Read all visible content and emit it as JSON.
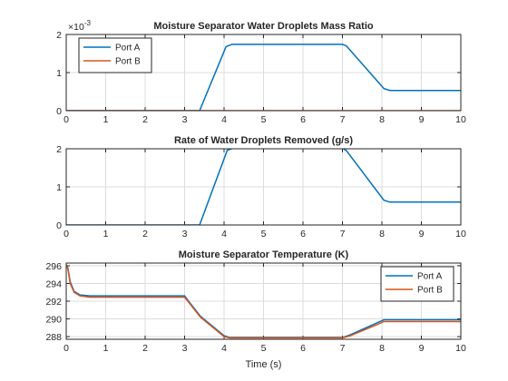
{
  "colors": {
    "series_a": "#0072BD",
    "series_b": "#D95319",
    "axis": "#262626",
    "grid": "#dcdcdc"
  },
  "chart_data": [
    {
      "type": "line",
      "title": "Moisture Separator Water Droplets Mass Ratio",
      "xlabel": "",
      "ylabel": "",
      "exponent_label": "×10",
      "exponent_power": "-3",
      "xlim": [
        0,
        10
      ],
      "ylim": [
        0,
        2
      ],
      "xticks": [
        0,
        1,
        2,
        3,
        4,
        5,
        6,
        7,
        8,
        9,
        10
      ],
      "yticks": [
        0,
        1,
        2
      ],
      "grid": true,
      "legend": "top-left",
      "series": [
        {
          "name": "Port A",
          "color": "#0072BD",
          "x": [
            0,
            3.38,
            4.05,
            4.2,
            7.0,
            7.1,
            8.05,
            8.2,
            10
          ],
          "y": [
            0,
            0,
            1.68,
            1.74,
            1.74,
            1.7,
            0.58,
            0.53,
            0.53
          ]
        },
        {
          "name": "Port B",
          "color": "#D95319",
          "x": [
            0,
            10
          ],
          "y": [
            0,
            0
          ]
        }
      ]
    },
    {
      "type": "line",
      "title": "Rate of Water Droplets Removed (g/s)",
      "xlabel": "",
      "ylabel": "",
      "xlim": [
        0,
        10
      ],
      "ylim": [
        0,
        2
      ],
      "xticks": [
        0,
        1,
        2,
        3,
        4,
        5,
        6,
        7,
        8,
        9,
        10
      ],
      "yticks": [
        0,
        1,
        2
      ],
      "grid": true,
      "series": [
        {
          "name": "",
          "color": "#0072BD",
          "x": [
            0,
            3.38,
            4.08,
            4.25,
            7.0,
            7.1,
            8.05,
            8.2,
            10
          ],
          "y": [
            0,
            0,
            1.96,
            2.02,
            2.02,
            1.95,
            0.65,
            0.6,
            0.6
          ]
        }
      ]
    },
    {
      "type": "line",
      "title": "Moisture Separator Temperature (K)",
      "xlabel": "Time (s)",
      "ylabel": "",
      "xlim": [
        0,
        10
      ],
      "ylim": [
        287.7,
        296.3
      ],
      "xticks": [
        0,
        1,
        2,
        3,
        4,
        5,
        6,
        7,
        8,
        9,
        10
      ],
      "yticks": [
        288,
        290,
        292,
        294,
        296
      ],
      "grid": true,
      "legend": "top-right",
      "series": [
        {
          "name": "Port A",
          "color": "#0072BD",
          "x": [
            0,
            0.04,
            0.1,
            0.2,
            0.35,
            0.6,
            3.0,
            3.1,
            3.4,
            4.0,
            4.15,
            7.0,
            7.2,
            7.9,
            8.05,
            10
          ],
          "y": [
            296.1,
            295.8,
            294.2,
            293.1,
            292.7,
            292.6,
            292.6,
            292.0,
            290.3,
            288.1,
            287.9,
            287.9,
            288.2,
            289.6,
            289.9,
            289.9
          ]
        },
        {
          "name": "Port B",
          "color": "#D95319",
          "x": [
            0,
            0.04,
            0.1,
            0.2,
            0.35,
            0.6,
            3.0,
            3.1,
            3.4,
            4.0,
            4.15,
            7.0,
            7.2,
            7.9,
            8.05,
            10
          ],
          "y": [
            296.1,
            295.7,
            294.0,
            293.0,
            292.6,
            292.45,
            292.45,
            291.9,
            290.2,
            288.0,
            287.85,
            287.85,
            288.1,
            289.4,
            289.7,
            289.7
          ]
        }
      ]
    }
  ]
}
